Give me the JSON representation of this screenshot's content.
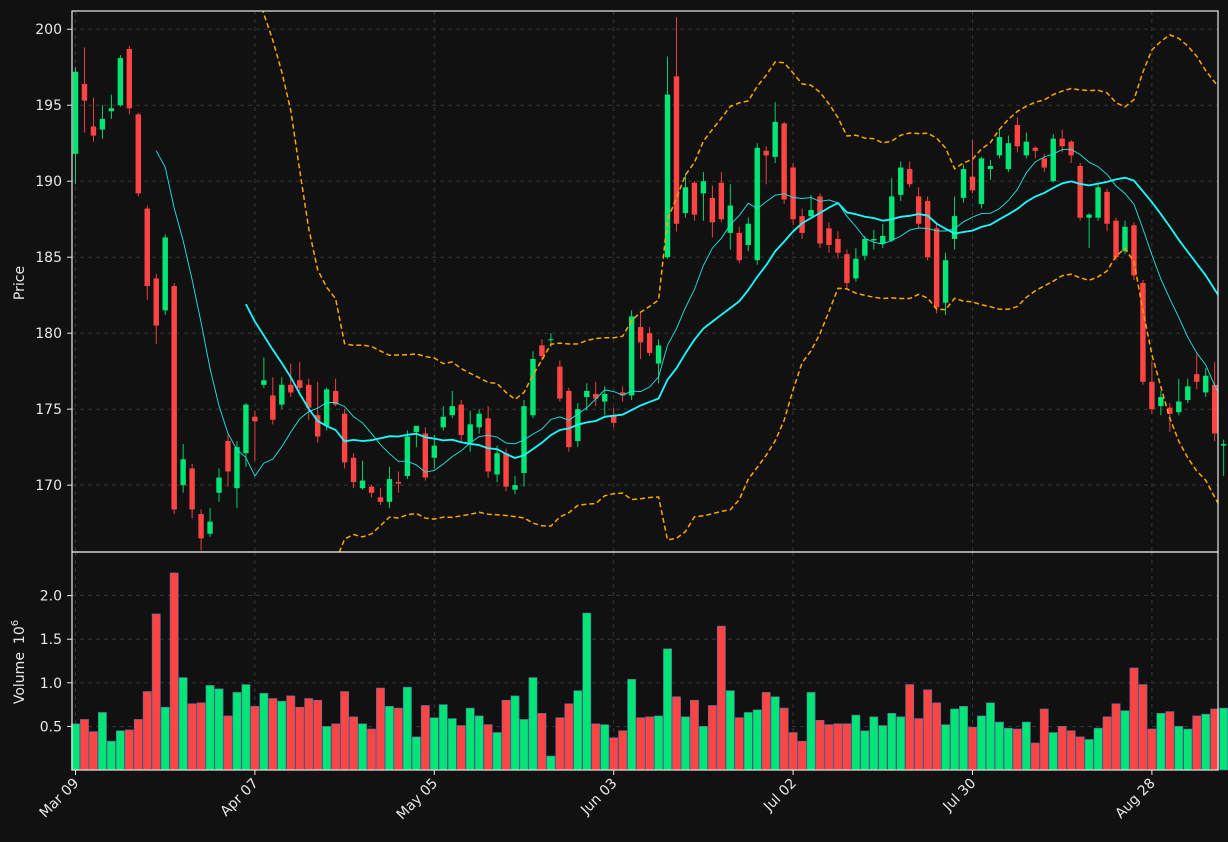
{
  "chart_data": {
    "type": "candlestick",
    "style": "dark",
    "colors": {
      "background": "#111111",
      "up": "#00e676",
      "down": "#ff4444",
      "ma_fast": "#22e5e5",
      "ma_slow": "#19ffff",
      "bands": "#ffa500",
      "grid": "#3a3a3a",
      "axes": "#e8e8e8"
    },
    "price_panel": {
      "ylabel": "Price",
      "ylim": [
        165.6,
        201.2
      ],
      "yticks": [
        "170",
        "175",
        "180",
        "185",
        "190",
        "195",
        "200"
      ]
    },
    "volume_panel": {
      "ylabel": "Volume",
      "ylabel_exp": "10",
      "ylabel_exp_sup": "6",
      "ylim": [
        0.0,
        2.5
      ],
      "yticks": [
        "0.5",
        "1.0",
        "1.5",
        "2.0"
      ]
    },
    "x_ticks": [
      {
        "label": "Mar 09",
        "index": 0
      },
      {
        "label": "Apr 07",
        "index": 20
      },
      {
        "label": "May 05",
        "index": 40
      },
      {
        "label": "Jun 03",
        "index": 60
      },
      {
        "label": "Jul 02",
        "index": 80
      },
      {
        "label": "Jul 30",
        "index": 100
      },
      {
        "label": "Aug 28",
        "index": 120
      }
    ],
    "candles": [
      [
        191.8,
        197.2,
        197.5,
        189.8
      ],
      [
        196.4,
        195.3,
        198.8,
        193.2
      ],
      [
        193.6,
        193.0,
        195.5,
        192.6
      ],
      [
        193.4,
        194.1,
        195.0,
        192.8
      ],
      [
        194.6,
        194.8,
        195.7,
        194.1
      ],
      [
        195.0,
        198.1,
        198.3,
        194.9
      ],
      [
        198.7,
        194.8,
        198.9,
        194.4
      ],
      [
        194.4,
        189.2,
        194.5,
        189.0
      ],
      [
        188.2,
        183.1,
        188.4,
        182.2
      ],
      [
        183.6,
        180.5,
        183.9,
        179.3
      ],
      [
        181.5,
        186.3,
        186.5,
        181.2
      ],
      [
        183.1,
        168.4,
        183.3,
        168.1
      ],
      [
        170.0,
        171.7,
        172.7,
        169.5
      ],
      [
        171.1,
        168.4,
        171.4,
        167.8
      ],
      [
        168.1,
        166.5,
        168.4,
        165.7
      ],
      [
        166.8,
        167.6,
        168.5,
        166.6
      ],
      [
        169.5,
        170.5,
        171.1,
        168.9
      ],
      [
        172.9,
        170.9,
        173.3,
        169.9
      ],
      [
        169.8,
        172.5,
        172.9,
        168.5
      ],
      [
        172.1,
        175.3,
        175.4,
        171.2
      ],
      [
        174.5,
        174.2,
        174.9,
        171.6
      ],
      [
        176.6,
        176.9,
        178.4,
        176.4
      ],
      [
        175.9,
        174.3,
        177.1,
        174.0
      ],
      [
        175.3,
        176.6,
        177.1,
        175.0
      ],
      [
        176.6,
        176.1,
        178.0,
        175.8
      ],
      [
        176.9,
        176.4,
        178.1,
        176.2
      ],
      [
        176.6,
        175.1,
        177.0,
        174.3
      ],
      [
        174.6,
        173.2,
        176.8,
        172.8
      ],
      [
        173.9,
        176.3,
        176.4,
        173.6
      ],
      [
        176.2,
        175.3,
        177.0,
        175.2
      ],
      [
        174.7,
        171.5,
        175.0,
        171.1
      ],
      [
        171.8,
        170.2,
        172.1,
        169.8
      ],
      [
        169.8,
        170.3,
        171.6,
        169.7
      ],
      [
        169.9,
        169.5,
        170.0,
        169.2
      ],
      [
        169.2,
        168.9,
        169.8,
        168.7
      ],
      [
        168.9,
        170.4,
        171.2,
        168.5
      ],
      [
        170.2,
        170.1,
        170.9,
        169.5
      ],
      [
        170.6,
        173.2,
        173.6,
        170.4
      ],
      [
        173.5,
        173.9,
        173.9,
        172.5
      ],
      [
        173.4,
        170.5,
        173.8,
        170.3
      ],
      [
        171.8,
        172.6,
        173.3,
        171.1
      ],
      [
        173.8,
        174.5,
        175.2,
        173.6
      ],
      [
        174.6,
        175.2,
        176.2,
        174.4
      ],
      [
        175.3,
        173.3,
        175.6,
        172.8
      ],
      [
        172.8,
        174.0,
        174.9,
        172.2
      ],
      [
        173.8,
        174.7,
        175.0,
        173.4
      ],
      [
        174.4,
        170.9,
        175.2,
        170.5
      ],
      [
        170.7,
        172.1,
        172.6,
        170.2
      ],
      [
        172.1,
        169.9,
        172.4,
        169.6
      ],
      [
        169.7,
        170.0,
        170.6,
        169.4
      ],
      [
        170.8,
        175.2,
        175.6,
        169.9
      ],
      [
        174.6,
        178.3,
        178.8,
        174.4
      ],
      [
        179.2,
        178.5,
        179.6,
        178.2
      ],
      [
        179.6,
        179.6,
        180.0,
        179.1
      ],
      [
        177.8,
        175.7,
        178.2,
        175.5
      ],
      [
        176.2,
        172.5,
        176.4,
        172.2
      ],
      [
        172.9,
        175.0,
        175.4,
        172.5
      ],
      [
        175.8,
        176.2,
        176.7,
        174.9
      ],
      [
        176.0,
        175.7,
        176.8,
        175.2
      ],
      [
        175.5,
        176.0,
        176.5,
        174.6
      ],
      [
        174.6,
        174.1,
        175.1,
        173.8
      ],
      [
        176.1,
        175.9,
        176.5,
        175.5
      ],
      [
        175.9,
        181.1,
        181.5,
        175.6
      ],
      [
        180.4,
        179.4,
        181.4,
        178.3
      ],
      [
        180.0,
        178.7,
        180.4,
        178.5
      ],
      [
        178.0,
        179.2,
        179.6,
        176.7
      ],
      [
        185.0,
        195.7,
        198.2,
        184.9
      ],
      [
        196.9,
        187.2,
        200.8,
        186.7
      ],
      [
        187.9,
        189.6,
        190.5,
        187.6
      ],
      [
        189.9,
        187.8,
        190.0,
        187.4
      ],
      [
        189.2,
        190.0,
        190.6,
        187.4
      ],
      [
        188.9,
        187.3,
        189.7,
        186.3
      ],
      [
        189.9,
        187.5,
        190.6,
        187.3
      ],
      [
        186.6,
        188.4,
        189.8,
        185.5
      ],
      [
        186.6,
        184.8,
        187.0,
        184.6
      ],
      [
        185.8,
        187.2,
        187.6,
        185.4
      ],
      [
        184.8,
        192.2,
        192.5,
        184.5
      ],
      [
        192.0,
        191.7,
        192.3,
        189.8
      ],
      [
        191.6,
        193.9,
        195.2,
        191.2
      ],
      [
        193.8,
        188.8,
        193.9,
        188.5
      ],
      [
        190.9,
        187.5,
        191.2,
        187.1
      ],
      [
        187.7,
        186.6,
        188.2,
        186.2
      ],
      [
        187.7,
        188.1,
        189.1,
        187.5
      ],
      [
        189.0,
        185.9,
        189.2,
        185.6
      ],
      [
        186.9,
        185.8,
        187.3,
        185.3
      ],
      [
        186.2,
        185.3,
        186.7,
        184.9
      ],
      [
        185.2,
        183.3,
        185.5,
        182.9
      ],
      [
        183.6,
        184.9,
        185.6,
        183.4
      ],
      [
        185.1,
        186.2,
        186.4,
        184.8
      ],
      [
        186.1,
        186.2,
        186.8,
        185.5
      ],
      [
        185.9,
        186.4,
        187.2,
        185.6
      ],
      [
        186.1,
        189.0,
        190.2,
        186.0
      ],
      [
        189.1,
        190.9,
        191.3,
        188.7
      ],
      [
        190.8,
        189.8,
        191.3,
        189.6
      ],
      [
        189.0,
        187.2,
        189.6,
        186.9
      ],
      [
        188.7,
        185.0,
        189.0,
        184.8
      ],
      [
        186.9,
        181.7,
        187.3,
        181.3
      ],
      [
        182.0,
        184.8,
        185.3,
        181.2
      ],
      [
        186.2,
        187.7,
        189.0,
        185.5
      ],
      [
        188.9,
        190.8,
        191.1,
        188.6
      ],
      [
        190.3,
        189.4,
        192.7,
        189.2
      ],
      [
        188.5,
        191.5,
        191.6,
        188.2
      ],
      [
        190.8,
        191.0,
        191.4,
        190.1
      ],
      [
        191.7,
        192.9,
        193.4,
        191.5
      ],
      [
        190.8,
        192.5,
        193.0,
        190.6
      ],
      [
        193.7,
        192.3,
        194.2,
        191.9
      ],
      [
        191.7,
        192.6,
        193.2,
        191.5
      ],
      [
        192.2,
        192.0,
        192.3,
        191.5
      ],
      [
        191.5,
        190.9,
        191.8,
        190.6
      ],
      [
        190.0,
        192.8,
        193.1,
        189.9
      ],
      [
        192.8,
        192.3,
        193.4,
        191.9
      ],
      [
        192.6,
        191.7,
        192.7,
        191.2
      ],
      [
        191.0,
        187.6,
        191.2,
        187.4
      ],
      [
        187.6,
        187.8,
        187.9,
        185.6
      ],
      [
        187.6,
        189.6,
        189.9,
        187.4
      ],
      [
        189.3,
        187.2,
        189.5,
        186.7
      ],
      [
        187.4,
        185.0,
        187.6,
        184.8
      ],
      [
        185.4,
        187.0,
        187.4,
        185.2
      ],
      [
        187.1,
        183.8,
        187.3,
        183.5
      ],
      [
        183.3,
        176.8,
        183.5,
        176.6
      ],
      [
        176.8,
        175.0,
        178.2,
        174.7
      ],
      [
        175.2,
        175.8,
        176.2,
        174.6
      ],
      [
        175.1,
        174.7,
        175.4,
        173.5
      ],
      [
        174.8,
        175.5,
        177.0,
        174.6
      ],
      [
        175.6,
        176.5,
        177.0,
        175.4
      ],
      [
        177.3,
        176.8,
        178.6,
        176.3
      ],
      [
        176.1,
        177.2,
        177.7,
        175.8
      ],
      [
        176.6,
        173.4,
        178.1,
        172.9
      ],
      [
        172.6,
        172.7,
        173.0,
        170.6
      ]
    ],
    "volume": [
      0.53,
      0.58,
      0.44,
      0.66,
      0.33,
      0.45,
      0.46,
      0.58,
      0.9,
      1.79,
      0.72,
      2.26,
      1.06,
      0.76,
      0.77,
      0.97,
      0.93,
      0.62,
      0.89,
      0.98,
      0.73,
      0.88,
      0.82,
      0.79,
      0.85,
      0.72,
      0.82,
      0.8,
      0.5,
      0.53,
      0.9,
      0.61,
      0.53,
      0.47,
      0.94,
      0.73,
      0.71,
      0.95,
      0.38,
      0.74,
      0.6,
      0.75,
      0.59,
      0.51,
      0.71,
      0.62,
      0.52,
      0.43,
      0.8,
      0.85,
      0.58,
      1.06,
      0.65,
      0.16,
      0.6,
      0.76,
      0.91,
      1.8,
      0.53,
      0.52,
      0.37,
      0.45,
      1.04,
      0.6,
      0.61,
      0.62,
      1.39,
      0.84,
      0.61,
      0.8,
      0.5,
      0.74,
      1.65,
      0.91,
      0.6,
      0.66,
      0.69,
      0.89,
      0.84,
      0.71,
      0.43,
      0.33,
      0.89,
      0.57,
      0.52,
      0.53,
      0.53,
      0.63,
      0.45,
      0.61,
      0.51,
      0.65,
      0.61,
      0.98,
      0.59,
      0.92,
      0.77,
      0.52,
      0.7,
      0.73,
      0.49,
      0.62,
      0.77,
      0.55,
      0.48,
      0.47,
      0.55,
      0.31,
      0.7,
      0.43,
      0.5,
      0.45,
      0.38,
      0.35,
      0.48,
      0.61,
      0.76,
      0.68,
      1.17,
      0.98,
      0.47,
      0.65,
      0.67,
      0.5,
      0.47,
      0.62,
      0.64,
      0.7,
      0.71
    ],
    "ma_fast_start": 9,
    "ma_slow_start": 19
  }
}
